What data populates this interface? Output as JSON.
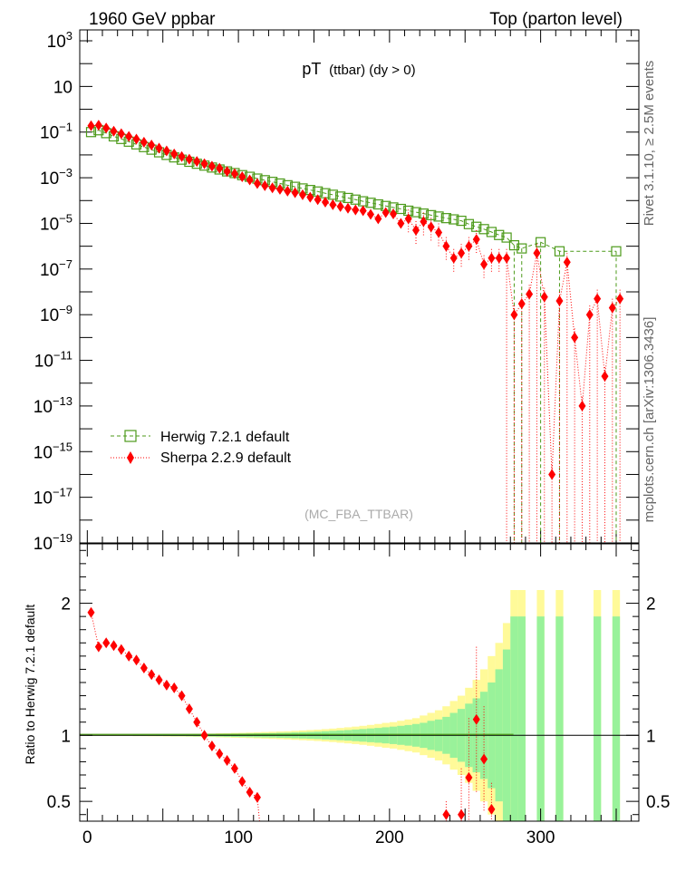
{
  "header": {
    "left": "1960 GeV ppbar",
    "right": "Top (parton level)",
    "side_rivet": "Rivet 3.1.10, ≥ 2.5M events",
    "side_mcplots": "mcplots.cern.ch [arXiv:1306.3436]"
  },
  "colors": {
    "herwig": "#4c9a1a",
    "sherpa": "#ff0000",
    "band_inner": "#99f29a",
    "band_outer": "#fffa99"
  },
  "chart_data": [
    {
      "type": "scatter",
      "title": "pT",
      "title_sub": "(ttbar) (dy > 0)",
      "watermark": "(MC_FBA_TTBAR)",
      "yscale": "log",
      "xlim": [
        -5,
        365
      ],
      "ylim": [
        1e-19,
        3000
      ],
      "grid": false,
      "legend_position": "center-left",
      "yticks": [
        {
          "value": 1000,
          "label": "10",
          "sup": "3"
        },
        {
          "value": 10,
          "label": "10",
          "sup": ""
        },
        {
          "value": 0.1,
          "label": "10",
          "sup": "−1"
        },
        {
          "value": 0.001,
          "label": "10",
          "sup": "−3"
        },
        {
          "value": 1e-05,
          "label": "10",
          "sup": "−5"
        },
        {
          "value": 1e-07,
          "label": "10",
          "sup": "−7"
        },
        {
          "value": 1e-09,
          "label": "10",
          "sup": "−9"
        },
        {
          "value": 1e-11,
          "label": "10",
          "sup": "−11"
        },
        {
          "value": 1e-13,
          "label": "10",
          "sup": "−13"
        },
        {
          "value": 1e-15,
          "label": "10",
          "sup": "−15"
        },
        {
          "value": 1e-17,
          "label": "10",
          "sup": "−17"
        },
        {
          "value": 1e-19,
          "label": "10",
          "sup": "−19"
        }
      ],
      "series": [
        {
          "name": "Herwig 7.2.1 default",
          "marker": "open-square",
          "line": "dashed",
          "x": [
            2.5,
            7.5,
            12.5,
            17.5,
            22.5,
            27.5,
            32.5,
            37.5,
            42.5,
            47.5,
            52.5,
            57.5,
            62.5,
            67.5,
            72.5,
            77.5,
            82.5,
            87.5,
            92.5,
            97.5,
            102.5,
            107.5,
            112.5,
            117.5,
            122.5,
            127.5,
            132.5,
            137.5,
            142.5,
            147.5,
            152.5,
            157.5,
            162.5,
            167.5,
            172.5,
            177.5,
            182.5,
            187.5,
            192.5,
            197.5,
            202.5,
            207.5,
            212.5,
            217.5,
            222.5,
            227.5,
            232.5,
            237.5,
            242.5,
            247.5,
            252.5,
            257.5,
            262.5,
            267.5,
            272.5,
            277.5,
            282.5,
            287.5,
            300,
            312.5,
            350
          ],
          "y": [
            0.1,
            0.12,
            0.09,
            0.065,
            0.05,
            0.038,
            0.029,
            0.022,
            0.017,
            0.013,
            0.01,
            0.0078,
            0.0062,
            0.005,
            0.0041,
            0.0034,
            0.0028,
            0.0023,
            0.0019,
            0.0016,
            0.0013,
            0.0011,
            0.00092,
            0.00078,
            0.00066,
            0.00056,
            0.00047,
            0.0004,
            0.00034,
            0.00029,
            0.00025,
            0.00021,
            0.00018,
            0.00015,
            0.00013,
            0.00011,
            9.3e-05,
            8e-05,
            6.8e-05,
            5.8e-05,
            5e-05,
            4.3e-05,
            3.6e-05,
            3.1e-05,
            2.7e-05,
            2.3e-05,
            2e-05,
            1.7e-05,
            1.5e-05,
            1.3e-05,
            9.3e-06,
            7.1e-06,
            5.6e-06,
            4.2e-06,
            3.1e-06,
            2.4e-06,
            1.1e-06,
            8e-07,
            1.5e-06,
            6e-07,
            6e-07
          ]
        },
        {
          "name": "Sherpa 2.2.9 default",
          "marker": "filled-diamond",
          "line": "dotted",
          "x": [
            2.5,
            7.5,
            12.5,
            17.5,
            22.5,
            27.5,
            32.5,
            37.5,
            42.5,
            47.5,
            52.5,
            57.5,
            62.5,
            67.5,
            72.5,
            77.5,
            82.5,
            87.5,
            92.5,
            97.5,
            102.5,
            107.5,
            112.5,
            117.5,
            122.5,
            127.5,
            132.5,
            137.5,
            142.5,
            147.5,
            152.5,
            157.5,
            162.5,
            167.5,
            172.5,
            177.5,
            182.5,
            187.5,
            192.5,
            197.5,
            202.5,
            207.5,
            212.5,
            217.5,
            222.5,
            227.5,
            232.5,
            237.5,
            242.5,
            247.5,
            252.5,
            257.5,
            262.5,
            267.5,
            272.5,
            277.5,
            282.5,
            287.5,
            292.5,
            297.5,
            302.5,
            307.5,
            312.5,
            317.5,
            322.5,
            327.5,
            332.5,
            337.5,
            342.5,
            347.5,
            352.5
          ],
          "y": [
            0.19,
            0.2,
            0.15,
            0.11,
            0.085,
            0.065,
            0.049,
            0.036,
            0.027,
            0.02,
            0.015,
            0.011,
            0.0085,
            0.0065,
            0.0052,
            0.0041,
            0.0032,
            0.0026,
            0.0019,
            0.0015,
            0.0011,
            0.0008,
            0.00056,
            0.00045,
            0.00036,
            0.00031,
            0.00026,
            0.00022,
            0.00018,
            0.00014,
            0.00011,
            8.5e-05,
            6.6e-05,
            5.5e-05,
            4.6e-05,
            3.9e-05,
            3.6e-05,
            2.5e-05,
            1.6e-05,
            3e-05,
            2.6e-05,
            1e-05,
            1.6e-05,
            5e-06,
            1.2e-05,
            7e-06,
            4e-06,
            1e-06,
            3e-07,
            5e-07,
            1e-06,
            2e-06,
            1.6e-07,
            3e-07,
            3e-07,
            3e-07,
            1e-09,
            3e-09,
            8e-09,
            5e-07,
            6e-09,
            1e-16,
            4e-09,
            2e-07,
            1e-10,
            1e-13,
            1e-09,
            5e-09,
            2e-12,
            2e-09,
            5e-09
          ]
        }
      ]
    },
    {
      "type": "scatter",
      "ylabel": "Ratio to Herwig 7.2.1 default",
      "xlim": [
        -5,
        365
      ],
      "ylim": [
        0.35,
        2.45
      ],
      "xticks": [
        {
          "value": 0,
          "label": "0"
        },
        {
          "value": 100,
          "label": "100"
        },
        {
          "value": 200,
          "label": "200"
        },
        {
          "value": 300,
          "label": "300"
        }
      ],
      "yticks": [
        {
          "value": 0.5,
          "label": "0.5"
        },
        {
          "value": 1,
          "label": "1"
        },
        {
          "value": 2,
          "label": "2"
        }
      ],
      "reference_line": 1,
      "bands": {
        "x": [
          2.5,
          7.5,
          12.5,
          17.5,
          22.5,
          27.5,
          32.5,
          37.5,
          42.5,
          47.5,
          52.5,
          57.5,
          62.5,
          67.5,
          72.5,
          77.5,
          82.5,
          87.5,
          92.5,
          97.5,
          102.5,
          107.5,
          112.5,
          117.5,
          122.5,
          127.5,
          132.5,
          137.5,
          142.5,
          147.5,
          152.5,
          157.5,
          162.5,
          167.5,
          172.5,
          177.5,
          182.5,
          187.5,
          192.5,
          197.5,
          202.5,
          207.5,
          212.5,
          217.5,
          222.5,
          227.5,
          232.5,
          237.5,
          242.5,
          247.5,
          252.5,
          257.5,
          262.5,
          267.5,
          272.5,
          277.5,
          282.5,
          287.5,
          300,
          312.5,
          337.5,
          350
        ],
        "inner": [
          0.003,
          0.003,
          0.003,
          0.003,
          0.003,
          0.003,
          0.004,
          0.004,
          0.004,
          0.005,
          0.005,
          0.006,
          0.006,
          0.007,
          0.008,
          0.008,
          0.009,
          0.01,
          0.011,
          0.012,
          0.013,
          0.014,
          0.015,
          0.016,
          0.017,
          0.019,
          0.02,
          0.022,
          0.024,
          0.026,
          0.028,
          0.031,
          0.034,
          0.037,
          0.04,
          0.044,
          0.048,
          0.052,
          0.056,
          0.061,
          0.066,
          0.072,
          0.078,
          0.086,
          0.095,
          0.11,
          0.12,
          0.14,
          0.17,
          0.2,
          0.24,
          0.28,
          0.33,
          0.4,
          0.5,
          0.65,
          0.9,
          0.9,
          0.9,
          0.9,
          0.9,
          0.9
        ],
        "outer": [
          0.004,
          0.004,
          0.004,
          0.005,
          0.005,
          0.005,
          0.006,
          0.006,
          0.007,
          0.007,
          0.008,
          0.009,
          0.009,
          0.01,
          0.011,
          0.012,
          0.013,
          0.015,
          0.016,
          0.018,
          0.019,
          0.021,
          0.023,
          0.025,
          0.027,
          0.029,
          0.031,
          0.034,
          0.037,
          0.04,
          0.043,
          0.047,
          0.051,
          0.056,
          0.061,
          0.066,
          0.072,
          0.079,
          0.086,
          0.094,
          0.1,
          0.11,
          0.12,
          0.13,
          0.15,
          0.17,
          0.19,
          0.22,
          0.26,
          0.3,
          0.36,
          0.42,
          0.5,
          0.6,
          0.7,
          0.85,
          1.1,
          1.1,
          1.1,
          1.1,
          1.1,
          1.1
        ]
      },
      "series": [
        {
          "name": "Sherpa 2.2.9 default",
          "x": [
            2.5,
            7.5,
            12.5,
            17.5,
            22.5,
            27.5,
            32.5,
            37.5,
            42.5,
            47.5,
            52.5,
            57.5,
            62.5,
            67.5,
            72.5,
            77.5,
            82.5,
            87.5,
            92.5,
            97.5,
            102.5,
            107.5,
            112.5,
            237.5,
            247.5,
            252.5,
            257.5,
            262.5,
            267.5
          ],
          "y": [
            1.93,
            1.67,
            1.7,
            1.68,
            1.65,
            1.6,
            1.57,
            1.51,
            1.46,
            1.42,
            1.38,
            1.36,
            1.3,
            1.2,
            1.1,
            1.0,
            0.92,
            0.86,
            0.81,
            0.75,
            0.65,
            0.57,
            0.53,
            0.4,
            0.4,
            0.68,
            1.12,
            0.82,
            0.44
          ],
          "yerr": [
            0.01,
            0.01,
            0.01,
            0.01,
            0.01,
            0.01,
            0.01,
            0.01,
            0.01,
            0.01,
            0.01,
            0.01,
            0.01,
            0.01,
            0.01,
            0.01,
            0.01,
            0.01,
            0.01,
            0.01,
            0.01,
            0.01,
            0.02,
            0.1,
            0.35,
            0.45,
            0.55,
            0.4,
            0.2
          ]
        }
      ]
    }
  ]
}
